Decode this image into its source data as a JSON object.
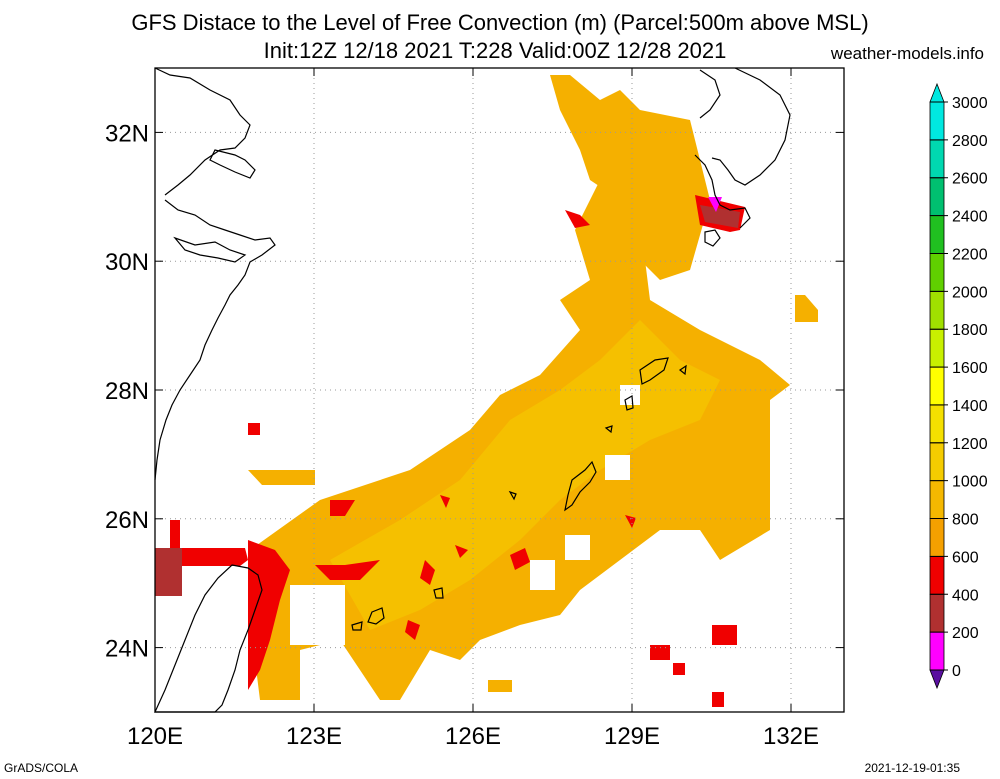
{
  "title": {
    "line1": "GFS Distace to the Level of Free Convection (m) (Parcel:500m above MSL)",
    "line2": "Init:12Z 12/18 2021 T:228 Valid:00Z 12/28 2021"
  },
  "site": "weather-models.info",
  "footer": {
    "left": "GrADS/COLA",
    "right": "2021-12-19-01:35"
  },
  "map": {
    "lon_range": [
      120,
      133
    ],
    "lat_range": [
      23,
      33
    ],
    "x_ticks": [
      {
        "value": 120,
        "label": "120E"
      },
      {
        "value": 123,
        "label": "123E"
      },
      {
        "value": 126,
        "label": "126E"
      },
      {
        "value": 129,
        "label": "129E"
      },
      {
        "value": 132,
        "label": "132E"
      }
    ],
    "y_ticks": [
      {
        "value": 24,
        "label": "24N"
      },
      {
        "value": 26,
        "label": "26N"
      },
      {
        "value": 28,
        "label": "28N"
      },
      {
        "value": 30,
        "label": "30N"
      },
      {
        "value": 32,
        "label": "32N"
      }
    ],
    "grid": true
  },
  "colorbar": {
    "levels": [
      "0",
      "200",
      "400",
      "600",
      "800",
      "1000",
      "1200",
      "1400",
      "1600",
      "1800",
      "2000",
      "2200",
      "2400",
      "2600",
      "2800",
      "3000"
    ],
    "colors": [
      "#5a0fa0",
      "#ff00ff",
      "#b03030",
      "#f00000",
      "#f5a000",
      "#f5b800",
      "#f5cc00",
      "#f5e000",
      "#ffff00",
      "#c8f000",
      "#a0e000",
      "#60d000",
      "#20c020",
      "#00c070",
      "#00d8b0",
      "#00e8e0"
    ]
  }
}
